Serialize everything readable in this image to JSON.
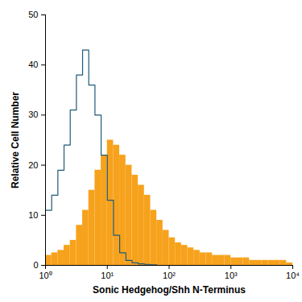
{
  "chart_data": {
    "type": "histogram",
    "xlabel": "Sonic Hedgehog/Shh N-Terminus",
    "ylabel": "Relative Cell Number",
    "log": "x",
    "grid": false,
    "xlim": [
      1,
      10000
    ],
    "ylim": [
      0,
      50
    ],
    "xticks": [
      {
        "value": 1,
        "label": "10⁰"
      },
      {
        "value": 10,
        "label": "10¹"
      },
      {
        "value": 100,
        "label": "10²"
      },
      {
        "value": 1000,
        "label": "10³"
      },
      {
        "value": 10000,
        "label": "10⁴"
      }
    ],
    "yticks": [
      0,
      10,
      20,
      30,
      40,
      50
    ],
    "bins": [
      1,
      1.259,
      1.585,
      1.995,
      2.512,
      3.162,
      3.981,
      5.012,
      6.31,
      7.943,
      10,
      12.59,
      15.85,
      19.95,
      25.12,
      31.62,
      39.81,
      50.12,
      63.1,
      79.43,
      100,
      125.9,
      158.5,
      199.5,
      251.2,
      316.2,
      398.1,
      501.2,
      631,
      794.3,
      1000,
      1259,
      1585,
      1995,
      2512,
      3162,
      3981,
      5012,
      6310,
      7943,
      10000
    ],
    "series": [
      {
        "type": "bar",
        "color": "#f7a21c",
        "values": [
          2,
          2.5,
          3,
          4,
          5,
          8,
          11,
          15,
          19,
          22,
          25,
          24,
          22,
          20,
          18,
          16,
          14,
          11,
          9,
          7,
          5.5,
          4.5,
          4,
          3.5,
          3,
          2.5,
          2.5,
          2,
          2,
          2,
          1.5,
          1.5,
          1.5,
          1,
          1,
          1,
          1,
          1,
          1,
          0.5
        ]
      },
      {
        "type": "line",
        "color": "#1f5a7a",
        "values": [
          11,
          14,
          19,
          24,
          31,
          38,
          43,
          36,
          30,
          22,
          13,
          6,
          2.5,
          1,
          0.5,
          0.3,
          0.2,
          0.1,
          0,
          0,
          0,
          0,
          0,
          0,
          0,
          0,
          0,
          0,
          0,
          0,
          0,
          0,
          0,
          0,
          0,
          0,
          0,
          0,
          0,
          0
        ]
      }
    ]
  }
}
